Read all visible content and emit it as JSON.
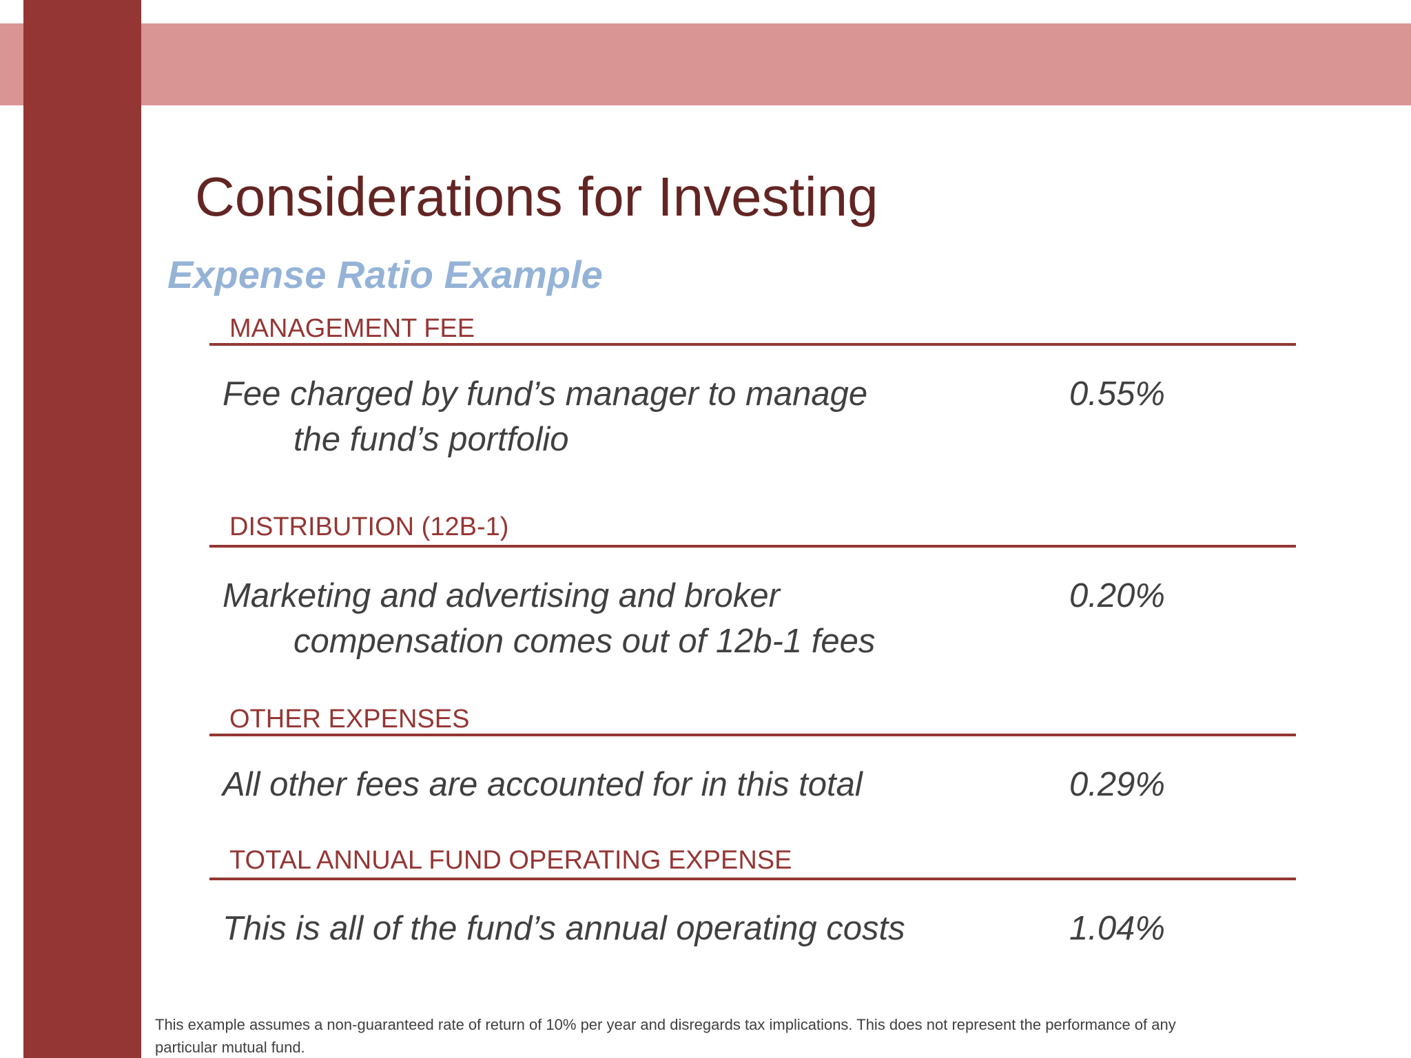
{
  "header": {
    "title": "Considerations for Investing",
    "subtitle": "Expense Ratio Example"
  },
  "sections": [
    {
      "heading": "MANAGEMENT FEE",
      "description": [
        "Fee charged by fund’s manager to manage",
        "the fund’s portfolio"
      ],
      "value": "0.55%"
    },
    {
      "heading": "DISTRIBUTION (12B-1)",
      "description": [
        "Marketing and advertising and broker",
        "compensation comes out of 12b-1 fees"
      ],
      "value": "0.20%"
    },
    {
      "heading": "OTHER EXPENSES",
      "description": [
        "All other fees are accounted for in this total"
      ],
      "value": "0.29%"
    },
    {
      "heading": "TOTAL ANNUAL FUND OPERATING EXPENSE",
      "description": [
        "This is all of the fund’s annual operating costs"
      ],
      "value": "1.04%"
    }
  ],
  "footnote": [
    "This example assumes a non-guaranteed rate of return of 10% per year and disregards tax implications. This does not represent the performance of any",
    "particular mutual fund."
  ]
}
